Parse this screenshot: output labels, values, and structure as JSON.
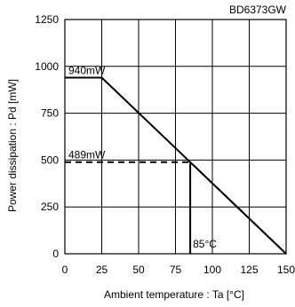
{
  "chart_data": {
    "type": "line",
    "title": "BD6373GW",
    "xlabel": "Ambient temperature : Ta [°C]",
    "ylabel": "Power dissipation : Pd [mW]",
    "xlim": [
      0,
      150
    ],
    "ylim": [
      0,
      1250
    ],
    "x_ticks": [
      0,
      25,
      50,
      75,
      100,
      125,
      150
    ],
    "y_ticks": [
      0,
      250,
      500,
      750,
      1000,
      1250
    ],
    "grid": true,
    "series": [
      {
        "style": "solid",
        "color": "#000000",
        "x": [
          0,
          25,
          150
        ],
        "y": [
          940,
          940,
          0
        ]
      },
      {
        "style": "dashed",
        "color": "#000000",
        "x": [
          0,
          85,
          150
        ],
        "y": [
          489,
          489,
          0
        ]
      }
    ],
    "annotations": [
      {
        "text": "940mW",
        "x": 0,
        "y": 940
      },
      {
        "text": "489mW",
        "x": 0,
        "y": 489
      },
      {
        "text": "85°C",
        "x": 85,
        "y": 0
      }
    ],
    "vertical_markers": [
      {
        "x": 85,
        "y": 489,
        "color": "#000000"
      }
    ]
  }
}
